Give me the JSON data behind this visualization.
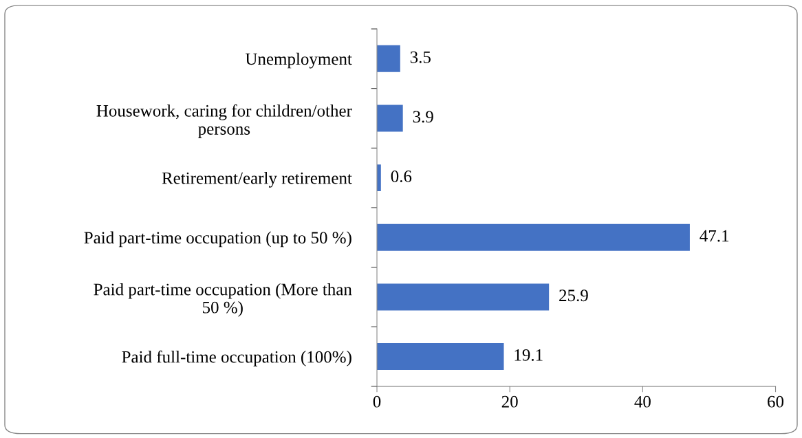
{
  "chart_data": {
    "type": "bar",
    "orientation": "horizontal",
    "categories": [
      "Unemployment",
      "Housework, caring for children/other\npersons",
      "Retirement/early retirement",
      "Paid part-time occupation (up to 50 %)",
      "Paid part-time occupation (More than\n50 %)",
      "Paid full-time occupation (100%)"
    ],
    "values": [
      3.5,
      3.9,
      0.6,
      47.1,
      25.9,
      19.1
    ],
    "color": "#4472c4",
    "xlim": [
      0,
      60
    ],
    "xticks": [
      0,
      20,
      40,
      60
    ],
    "data_labels": true,
    "grid": false,
    "legend": false
  }
}
